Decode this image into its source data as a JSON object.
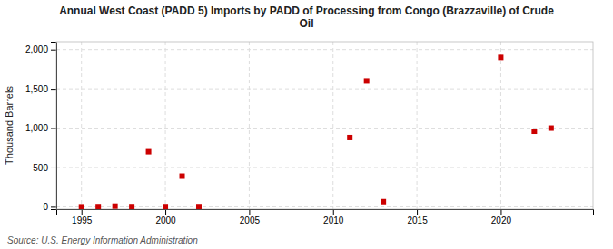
{
  "chart_data": {
    "type": "scatter",
    "title": "Annual West Coast (PADD 5) Imports by PADD of Processing from Congo (Brazzaville) of Crude\nOil",
    "ylabel": "Thousand Barrels",
    "source": "Source: U.S. Energy Information Administration",
    "x": [
      1995,
      1996,
      1997,
      1998,
      1999,
      2000,
      2001,
      2002,
      2011,
      2012,
      2013,
      2020,
      2022,
      2023
    ],
    "values": [
      0,
      2,
      8,
      2,
      700,
      2,
      390,
      2,
      880,
      1600,
      65,
      1900,
      960,
      1000
    ],
    "color": "#cc0000",
    "marker": "square",
    "xlim": [
      1993.5,
      2025.5
    ],
    "xticks": [
      1995,
      2000,
      2005,
      2010,
      2015,
      2020
    ],
    "ylim": [
      -30,
      2100
    ],
    "yticks": [
      0,
      500,
      {
        "value": 1000,
        "label": "1,000"
      },
      {
        "value": 1500,
        "label": "1,500"
      },
      {
        "value": 2000,
        "label": "2,000"
      }
    ],
    "grid": true
  }
}
